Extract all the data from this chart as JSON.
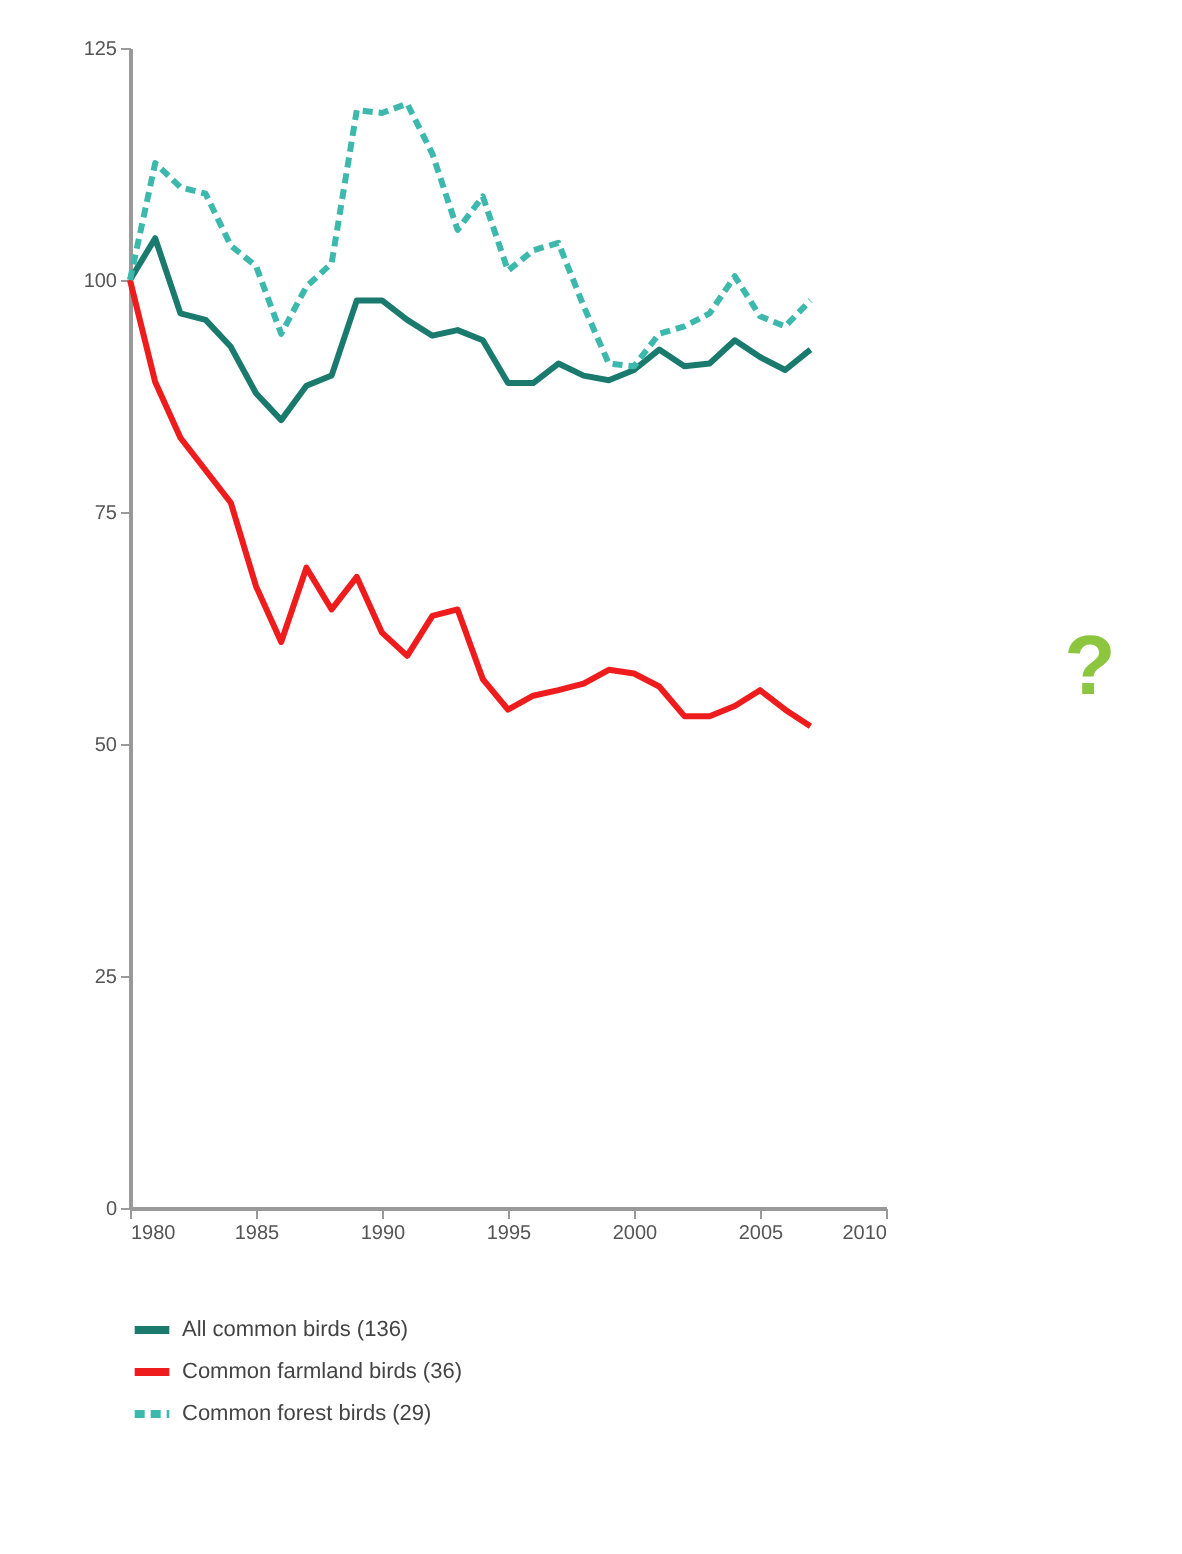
{
  "chart_data": {
    "type": "line",
    "x": [
      1980,
      1981,
      1982,
      1983,
      1984,
      1985,
      1986,
      1987,
      1988,
      1989,
      1990,
      1991,
      1992,
      1993,
      1994,
      1995,
      1996,
      1997,
      1998,
      1999,
      2000,
      2001,
      2002,
      2003,
      2004,
      2005,
      2006,
      2007
    ],
    "series": [
      {
        "name": "All common birds (136)",
        "color": "#1a7a6e",
        "line_style": "solid",
        "values": [
          100,
          104.5,
          96.4,
          95.7,
          92.8,
          87.8,
          84.9,
          88.6,
          89.7,
          97.8,
          97.8,
          95.7,
          94,
          94.6,
          93.5,
          88.9,
          88.9,
          91,
          89.7,
          89.2,
          90.3,
          92.5,
          90.7,
          91,
          93.5,
          91.7,
          90.3,
          92.5
        ]
      },
      {
        "name": "Common farmland birds (36)",
        "color": "#ee1c1c",
        "line_style": "solid",
        "values": [
          100,
          89,
          83,
          79.5,
          76,
          67,
          61,
          69,
          64.5,
          68,
          62,
          59.5,
          63.8,
          64.5,
          57,
          53.7,
          55.2,
          55.8,
          56.5,
          58,
          57.6,
          56.2,
          53,
          53,
          54.1,
          55.8,
          53.7,
          51.9
        ]
      },
      {
        "name": "Common forest birds (29)",
        "color": "#3cb8ac",
        "line_style": "dashed",
        "values": [
          100,
          112.6,
          110,
          109.3,
          103.7,
          101.5,
          94.2,
          99.3,
          101.8,
          118.3,
          118,
          119,
          113.6,
          105.4,
          109,
          101,
          103.2,
          104,
          97.2,
          91,
          90.7,
          94.2,
          95,
          96.4,
          100.4,
          96.1,
          95,
          97.8
        ]
      }
    ],
    "xlim": [
      1980,
      2010
    ],
    "xticks": [
      1980,
      1985,
      1990,
      1995,
      2000,
      2005,
      2010
    ],
    "ylim": [
      0,
      125
    ],
    "yticks": [
      0,
      25,
      50,
      75,
      100,
      125
    ],
    "grid": false,
    "legend": "bottom",
    "annotations": [
      "?"
    ]
  }
}
